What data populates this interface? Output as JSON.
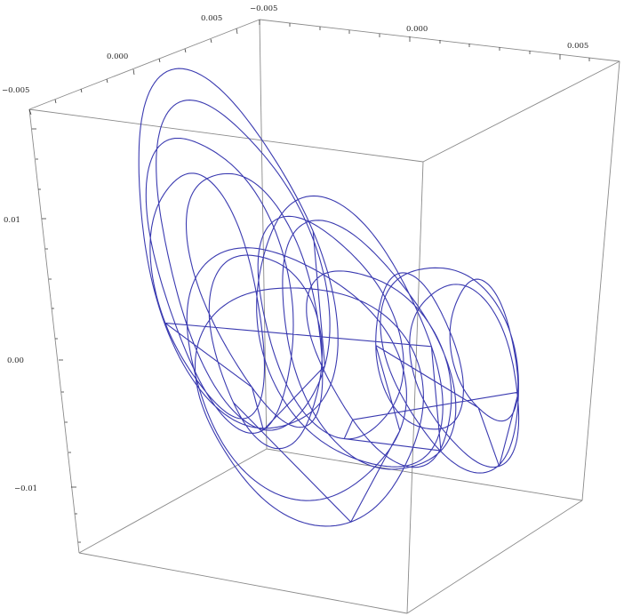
{
  "chart_data": {
    "type": "line",
    "title": "",
    "xlabel": "",
    "ylabel": "",
    "zlabel": "",
    "x_ticks": [
      "−0.005",
      "0.000",
      "0.005"
    ],
    "y_ticks": [
      "−0.005",
      "0.000",
      "0.005"
    ],
    "z_ticks": [
      "−0.01",
      "0.00",
      "0.01"
    ],
    "series": [
      {
        "values": "3D trajectory curve (chaotic attractor-like multi-lobed loops)"
      }
    ],
    "grid": false,
    "box": true,
    "colors": {
      "curve": "#3a3ab0",
      "box": "#8a8a8a",
      "text": "#222222"
    }
  }
}
